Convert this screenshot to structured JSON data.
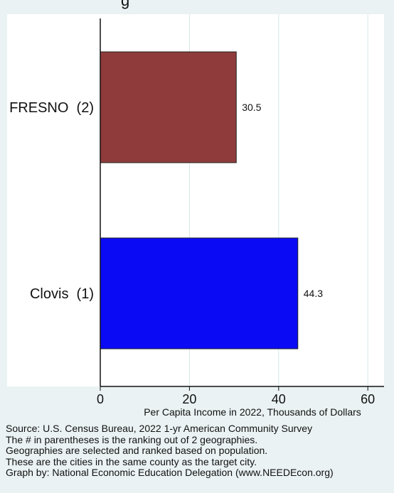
{
  "title_fragment": "g",
  "chart_data": {
    "type": "bar",
    "orientation": "horizontal",
    "categories": [
      "FRESNO  (2)",
      "Clovis  (1)"
    ],
    "values": [
      30.5,
      44.3
    ],
    "value_labels": [
      "30.5",
      "44.3"
    ],
    "colors": [
      "#8f3b3b",
      "#0a0af5"
    ],
    "xlabel": "Per Capita Income in 2022, Thousands of Dollars",
    "ylabel": "",
    "xlim": [
      0,
      63
    ],
    "xticks": [
      0,
      20,
      40,
      60
    ],
    "xtick_labels": [
      "0",
      "20",
      "40",
      "60"
    ],
    "grid": "vertical",
    "gridline_color": "#d7e6e8",
    "plot_background": "#ffffff",
    "page_background": "#eaf2f3"
  },
  "notes": [
    "Source: U.S. Census Bureau, 2022 1-yr American Community Survey",
    "The # in parentheses is the ranking out of 2 geographies.",
    "Geographies are selected and ranked based on population.",
    "These are the cities in the same county as the target city.",
    "Graph by: National Economic Education Delegation (www.NEEDEcon.org)"
  ]
}
